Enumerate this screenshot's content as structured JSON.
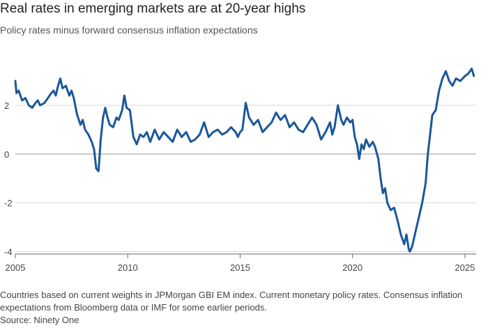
{
  "title": "Real rates in emerging markets are at 20-year highs",
  "subtitle": "Policy rates minus forward consensus inflation expectations",
  "footnote": "Countries based on current weights in JPMorgan GBI EM index. Current monetary policy rates. Consensus inflation expectations from Bloomberg data or IMF for some earlier periods.",
  "source": "Source: Ninety One",
  "colors": {
    "line": "#1a5799",
    "grid": "#d9d9d9",
    "zero_line": "#999999",
    "text": "#222222",
    "muted_text": "#444444"
  },
  "chart_data": {
    "type": "line",
    "title": "Real rates in emerging markets are at 20-year highs",
    "subtitle": "Policy rates minus forward consensus inflation expectations",
    "xlabel": "",
    "ylabel": "",
    "xlim": [
      2005.0,
      2025.5
    ],
    "ylim": [
      -4.1,
      3.6
    ],
    "y_ticks": [
      2,
      0,
      -2,
      -4
    ],
    "y_tick_labels": [
      "2",
      "0",
      "-2",
      "-4"
    ],
    "x_ticks": [
      2005,
      2010,
      2015,
      2020,
      2025
    ],
    "x_tick_labels": [
      "2005",
      "2010",
      "2015",
      "2020",
      "2025"
    ],
    "grid": "horizontal",
    "series": [
      {
        "x": [
          2005.0,
          2005.05,
          2005.15,
          2005.3,
          2005.45,
          2005.6,
          2005.75,
          2005.9,
          2006.0,
          2006.1,
          2006.3,
          2006.45,
          2006.6,
          2006.7,
          2006.8,
          2006.9,
          2007.0,
          2007.1,
          2007.25,
          2007.4,
          2007.5,
          2007.6,
          2007.75,
          2007.9,
          2008.0,
          2008.1,
          2008.25,
          2008.4,
          2008.5,
          2008.6,
          2008.7,
          2008.8,
          2008.9,
          2009.0,
          2009.1,
          2009.2,
          2009.35,
          2009.5,
          2009.6,
          2009.75,
          2009.85,
          2009.95,
          2010.1,
          2010.25,
          2010.4,
          2010.55,
          2010.7,
          2010.85,
          2011.0,
          2011.2,
          2011.4,
          2011.6,
          2011.8,
          2012.0,
          2012.2,
          2012.4,
          2012.6,
          2012.8,
          2013.0,
          2013.2,
          2013.4,
          2013.6,
          2013.8,
          2014.0,
          2014.2,
          2014.4,
          2014.6,
          2014.8,
          2014.9,
          2015.0,
          2015.1,
          2015.25,
          2015.4,
          2015.6,
          2015.8,
          2016.0,
          2016.2,
          2016.4,
          2016.6,
          2016.8,
          2017.0,
          2017.2,
          2017.4,
          2017.6,
          2017.8,
          2018.0,
          2018.2,
          2018.4,
          2018.6,
          2018.8,
          2019.0,
          2019.1,
          2019.2,
          2019.35,
          2019.5,
          2019.6,
          2019.75,
          2019.9,
          2020.0,
          2020.1,
          2020.2,
          2020.3,
          2020.4,
          2020.5,
          2020.6,
          2020.75,
          2020.9,
          2021.0,
          2021.15,
          2021.25,
          2021.35,
          2021.45,
          2021.55,
          2021.7,
          2021.85,
          2022.0,
          2022.15,
          2022.3,
          2022.4,
          2022.5,
          2022.55,
          2022.65,
          2022.8,
          2022.95,
          2023.1,
          2023.25,
          2023.35,
          2023.45,
          2023.55,
          2023.7,
          2023.85,
          2024.0,
          2024.15,
          2024.3,
          2024.45,
          2024.6,
          2024.8,
          2025.0,
          2025.15,
          2025.3,
          2025.4
        ],
        "y": [
          3.0,
          2.5,
          2.6,
          2.2,
          2.3,
          2.0,
          1.9,
          2.1,
          2.2,
          2.0,
          2.1,
          2.3,
          2.5,
          2.6,
          2.4,
          2.8,
          3.1,
          2.7,
          2.8,
          2.4,
          2.6,
          2.3,
          1.6,
          1.2,
          1.4,
          1.0,
          0.8,
          0.5,
          0.2,
          -0.6,
          -0.7,
          0.6,
          1.5,
          1.9,
          1.5,
          1.2,
          1.1,
          1.5,
          1.4,
          1.8,
          2.4,
          1.9,
          1.8,
          0.7,
          0.4,
          0.8,
          0.7,
          0.9,
          0.5,
          1.0,
          0.6,
          0.9,
          0.7,
          0.5,
          1.0,
          0.7,
          0.9,
          0.5,
          0.6,
          0.8,
          1.3,
          0.7,
          0.9,
          1.0,
          0.8,
          0.9,
          1.1,
          0.9,
          0.7,
          0.9,
          1.0,
          2.1,
          1.5,
          1.2,
          1.4,
          0.9,
          1.1,
          1.3,
          1.7,
          1.4,
          1.6,
          1.1,
          1.3,
          1.0,
          0.9,
          1.2,
          1.5,
          1.2,
          0.6,
          0.9,
          1.3,
          0.8,
          1.1,
          2.0,
          1.4,
          1.2,
          1.5,
          1.3,
          1.4,
          0.7,
          0.4,
          -0.2,
          0.4,
          0.2,
          0.6,
          0.3,
          0.5,
          0.3,
          -0.2,
          -1.0,
          -1.6,
          -1.4,
          -2.0,
          -2.3,
          -2.2,
          -2.7,
          -3.3,
          -3.7,
          -3.3,
          -3.9,
          -4.0,
          -3.8,
          -3.2,
          -2.6,
          -2.0,
          -1.2,
          0.0,
          0.8,
          1.6,
          1.8,
          2.6,
          3.1,
          3.4,
          3.0,
          2.8,
          3.1,
          3.0,
          3.2,
          3.3,
          3.5,
          3.2
        ]
      }
    ]
  }
}
